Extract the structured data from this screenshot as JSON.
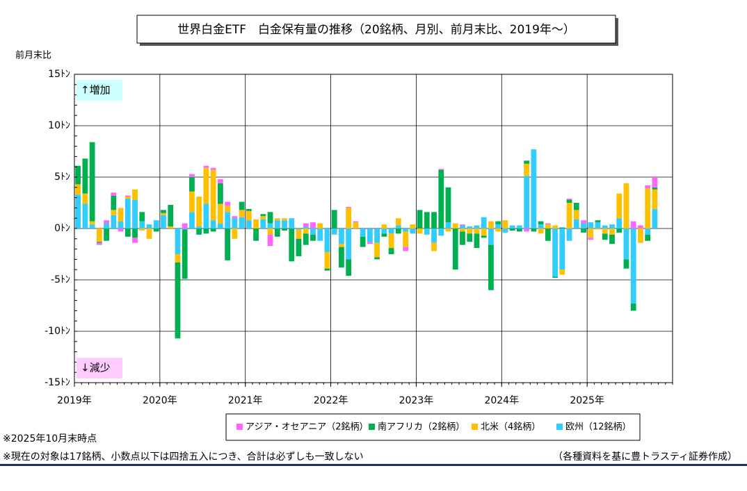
{
  "chart_data": {
    "type": "stacked_bar",
    "title": "世界白金ETF　白金保有量の推移（20銘柄、月別、前月末比、2019年～）",
    "y_axis_label": "前月末比",
    "annotations": {
      "up": "↑増加",
      "down": "↓減少"
    },
    "notes": [
      "※2025年10月末時点",
      "※現在の対象は17銘柄、小数点以下は四捨五入につき、合計は必ずしも一致しない"
    ],
    "source": "（各種資料を基に豊トラスティ証券作成）",
    "ylim": [
      -15,
      15
    ],
    "yticks": [
      {
        "value": 15,
        "label": "15ﾄﾝ"
      },
      {
        "value": 10,
        "label": "10ﾄﾝ"
      },
      {
        "value": 5,
        "label": "5ﾄﾝ"
      },
      {
        "value": 0,
        "label": "0ﾄﾝ"
      },
      {
        "value": -5,
        "label": "-5ﾄﾝ"
      },
      {
        "value": -10,
        "label": "-10ﾄﾝ"
      },
      {
        "value": -15,
        "label": "-15ﾄﾝ"
      }
    ],
    "grid": true,
    "categories": [
      "2019年",
      null,
      null,
      null,
      null,
      null,
      null,
      null,
      null,
      null,
      null,
      null,
      "2020年",
      null,
      null,
      null,
      null,
      null,
      null,
      null,
      null,
      null,
      null,
      null,
      "2021年",
      null,
      null,
      null,
      null,
      null,
      null,
      null,
      null,
      null,
      null,
      null,
      "2022年",
      null,
      null,
      null,
      null,
      null,
      null,
      null,
      null,
      null,
      null,
      null,
      "2023年",
      null,
      null,
      null,
      null,
      null,
      null,
      null,
      null,
      null,
      null,
      null,
      "2024年",
      null,
      null,
      null,
      null,
      null,
      null,
      null,
      null,
      null,
      null,
      null,
      "2025年",
      null,
      null,
      null,
      null,
      null,
      null,
      null,
      null,
      null,
      null,
      null
    ],
    "series": [
      {
        "name": "アジア・オセアニア（2銘柄）",
        "color": "#ff66ff",
        "values": [
          0,
          0,
          0,
          -0.2,
          0.3,
          0.3,
          -0.3,
          0.1,
          -0.5,
          0,
          0,
          0,
          0,
          0,
          0,
          0.5,
          0.3,
          0,
          0.2,
          0.2,
          0.4,
          0.4,
          0.2,
          0,
          0,
          0,
          0,
          -1.1,
          0,
          0,
          0,
          0,
          0.3,
          0.6,
          0,
          0,
          0,
          0,
          0.1,
          0.1,
          0,
          -0.2,
          0,
          0,
          0,
          0,
          -0.4,
          0,
          0,
          0,
          0,
          0.1,
          0,
          0,
          0.1,
          0,
          0,
          0,
          0,
          0,
          0,
          0,
          0,
          -0.3,
          0,
          0,
          0.1,
          0,
          0,
          0.1,
          0,
          0.3,
          -0.2,
          0,
          0,
          0,
          0,
          0,
          0.7,
          0.3,
          0.3,
          1.0,
          null,
          null
        ]
      },
      {
        "name": "南アフリカ（2銘柄）",
        "color": "#00b050",
        "values": [
          1.8,
          3.4,
          7.7,
          -0.1,
          -1.2,
          1.4,
          0,
          -0.8,
          -0.9,
          0.9,
          0,
          -0.3,
          0.3,
          2.1,
          -7.4,
          -4.8,
          1.4,
          -0.6,
          -0.5,
          -0.3,
          2.0,
          -3.1,
          0,
          0.8,
          0.2,
          -1.2,
          0.2,
          1.1,
          -0.8,
          -0.2,
          -3.2,
          -1.7,
          -1.1,
          -0.6,
          0,
          -0.2,
          1.8,
          -2.0,
          -1.6,
          0,
          -1.0,
          0,
          -0.2,
          -0.3,
          -0.6,
          -0.5,
          0,
          0,
          1.8,
          1.6,
          1.6,
          5.7,
          3.4,
          -4.0,
          -1.3,
          -0.8,
          -1.4,
          -0.2,
          -4.4,
          0.3,
          0,
          -0.2,
          -0.3,
          0.3,
          -0.3,
          0.3,
          -1.2,
          -0.1,
          0.1,
          0.3,
          0.7,
          -0.4,
          0,
          0.2,
          -0.6,
          -0.9,
          -0.4,
          -0.9,
          -0.7,
          0,
          -0.6,
          0.2,
          null,
          null
        ]
      },
      {
        "name": "北米（4銘柄）",
        "color": "#ffc000",
        "values": [
          1.0,
          1.0,
          0.3,
          -1.3,
          0,
          0.5,
          1.3,
          0.2,
          1.0,
          -0.2,
          -1.0,
          0,
          0.2,
          0.2,
          -0.8,
          0,
          2.0,
          2.9,
          3.5,
          4.9,
          1.9,
          0.6,
          -1.0,
          0.7,
          0.9,
          0.9,
          0.3,
          -0.6,
          0.2,
          0.2,
          0,
          -0.9,
          -0.5,
          0,
          0.5,
          -1.6,
          0,
          -0.3,
          2.0,
          0.6,
          0,
          0,
          -1.4,
          0.4,
          -1.4,
          0.7,
          -1.5,
          0.4,
          -0.5,
          0,
          -0.8,
          0,
          -0.3,
          0.5,
          -0.3,
          -0.5,
          -0.5,
          -0.7,
          0.7,
          -0.3,
          0.8,
          0,
          0,
          1.2,
          0,
          -0.5,
          0.4,
          0.3,
          -0.5,
          2.5,
          0.9,
          0,
          -0.9,
          -0.1,
          -0.5,
          -0.6,
          2.4,
          4.4,
          0,
          -1.4,
          3.9,
          1.9,
          null,
          null
        ]
      },
      {
        "name": "欧州（12銘柄）",
        "color": "#33ccff",
        "values": [
          3.3,
          2.4,
          0.4,
          0,
          0.5,
          1.3,
          0.7,
          2.9,
          2.8,
          0.7,
          0.4,
          0.8,
          1.3,
          0,
          -2.5,
          -0.1,
          1.6,
          0.2,
          2.4,
          0.8,
          0.5,
          1.6,
          1.0,
          1.1,
          0.8,
          0,
          0.9,
          0.5,
          0.8,
          0.8,
          1.0,
          -0.1,
          0.2,
          -0.6,
          -1.2,
          -2.3,
          -0.6,
          -1.5,
          -3.0,
          0,
          -0.8,
          -1.3,
          -1.4,
          -0.5,
          -0.5,
          0.3,
          -0.3,
          -0.5,
          0,
          -0.6,
          -1.4,
          -0.7,
          0.6,
          0,
          0.3,
          0.2,
          0.3,
          1.1,
          -1.6,
          0.4,
          -0.4,
          0.3,
          0.3,
          5.1,
          7.7,
          0.4,
          0,
          -4.7,
          -4.0,
          -1.2,
          0.9,
          0.5,
          0.6,
          0.6,
          0.3,
          0.4,
          1.0,
          -3.0,
          -7.3,
          0,
          -0.6,
          1.9,
          null,
          null
        ]
      }
    ]
  }
}
